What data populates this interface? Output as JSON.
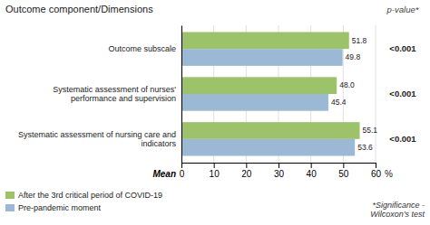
{
  "chart_data": {
    "type": "bar",
    "orientation": "horizontal",
    "title": "Outcome component/Dimensions",
    "categories": [
      "Systematic assessment of nursing care and\nindicators",
      "Systematic assessment of nurses'\nperformance and supervision",
      "Outcome subscale"
    ],
    "series": [
      {
        "name": "After the 3rd critical period of COVID-19",
        "color": "#9DC36A",
        "values": [
          55.1,
          48.0,
          51.8
        ],
        "value_labels": [
          "55.1",
          "48.0",
          "51.8"
        ]
      },
      {
        "name": "Pre-pandemic moment",
        "color": "#9BB8D4",
        "values": [
          53.6,
          45.4,
          49.8
        ],
        "value_labels": [
          "53.6",
          "45.4",
          "49.8"
        ]
      }
    ],
    "xlim": [
      0,
      60
    ],
    "xticks": [
      0,
      10,
      20,
      30,
      40,
      50,
      60
    ],
    "xlabel": "Mean",
    "xunit": "%",
    "p_label": "p-value*",
    "p_values": [
      "<0.001",
      "<0.001",
      "<0.001"
    ],
    "footnote": "*Significance -\nWilcoxon’s test",
    "grid": true,
    "data_labels": true,
    "legend": "lower left"
  }
}
